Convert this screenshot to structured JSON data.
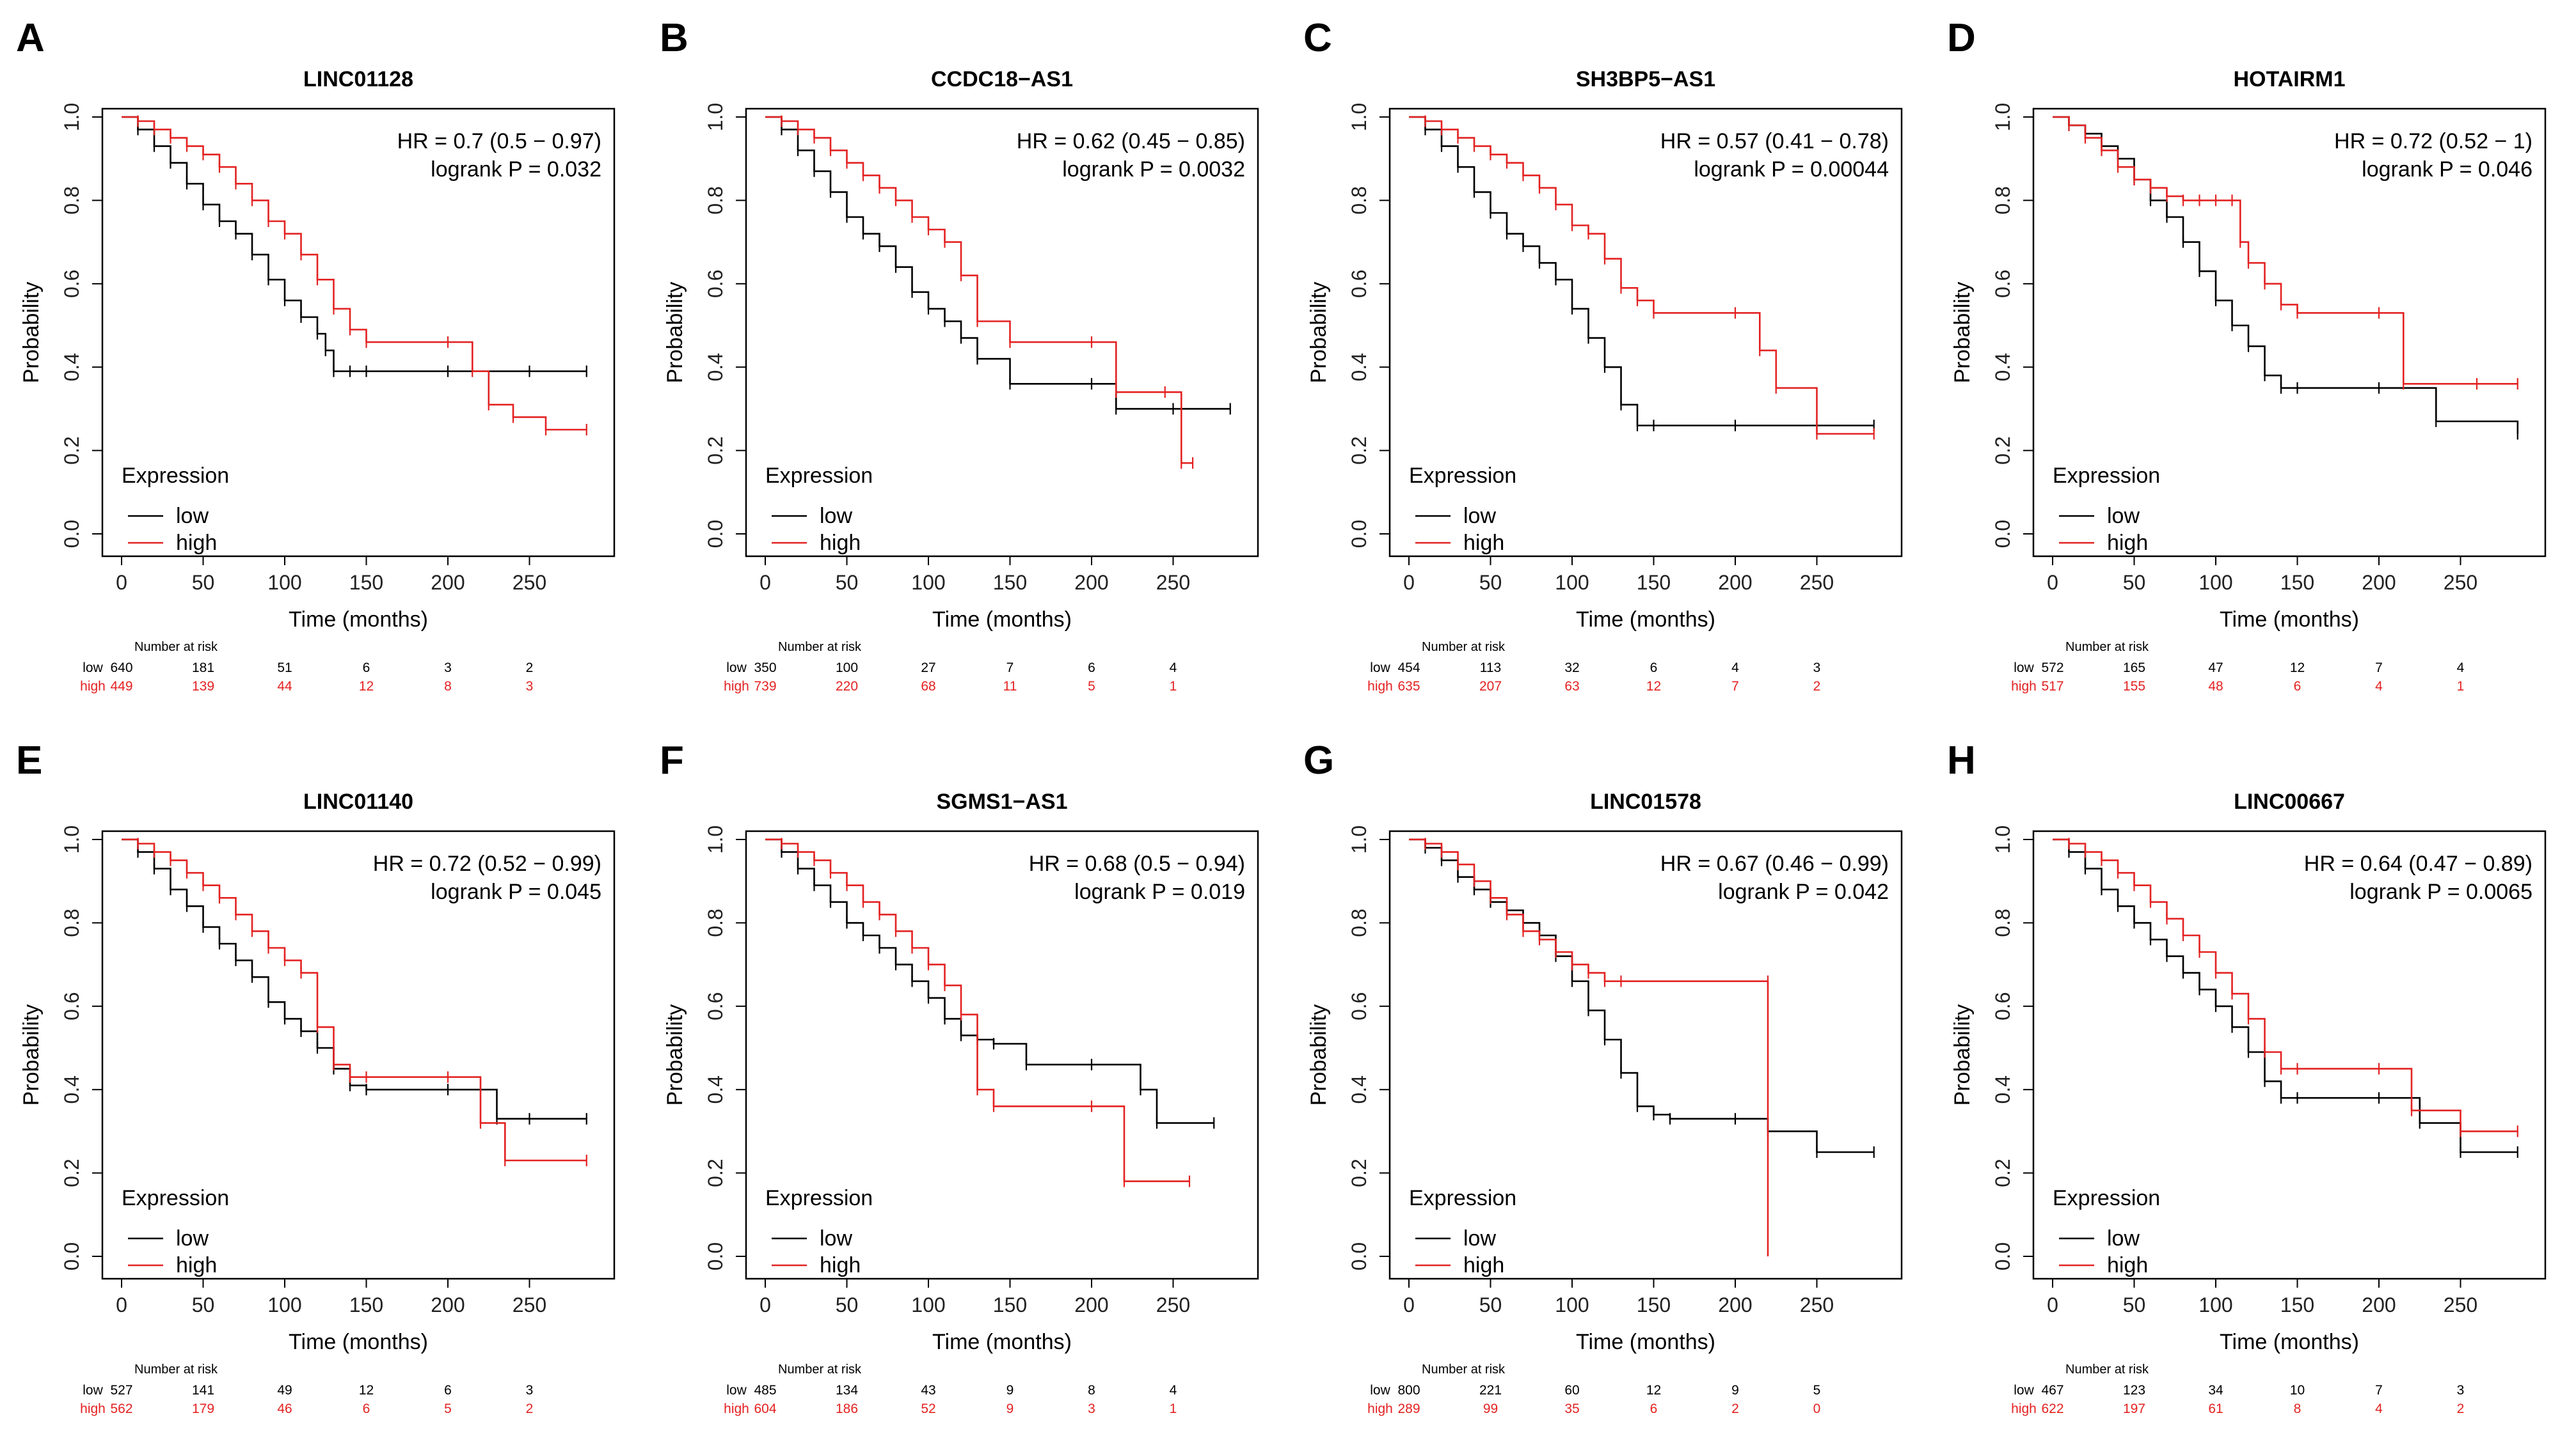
{
  "figure": {
    "colors": {
      "low": "#000000",
      "high": "#e32222",
      "axis": "#000000",
      "tick": "#222222"
    },
    "legend_title": "Expression",
    "legend_low": "low",
    "legend_high": "high",
    "ylabel": "Probability",
    "xlabel": "Time (months)",
    "risk_heading": "Number at risk",
    "x_ticks": [
      0,
      50,
      100,
      150,
      200,
      250
    ],
    "y_ticks": [
      "0.0",
      "0.2",
      "0.4",
      "0.6",
      "0.8",
      "1.0"
    ]
  },
  "chart_data": [
    {
      "panel": "A",
      "type": "line",
      "title": "LINC01128",
      "hr_text": "HR = 0.7 (0.5 − 0.97)",
      "p_text": "logrank P = 0.032",
      "xlabel": "Time (months)",
      "ylabel": "Probability",
      "xlim": [
        0,
        290
      ],
      "ylim": [
        0,
        1
      ],
      "series": [
        {
          "name": "low",
          "x": [
            0,
            10,
            20,
            30,
            40,
            50,
            60,
            70,
            80,
            90,
            100,
            110,
            120,
            125,
            130,
            140,
            150,
            200,
            250,
            285
          ],
          "y": [
            1.0,
            0.97,
            0.93,
            0.89,
            0.84,
            0.79,
            0.75,
            0.72,
            0.67,
            0.61,
            0.56,
            0.52,
            0.48,
            0.44,
            0.39,
            0.39,
            0.39,
            0.39,
            0.39,
            0.39
          ]
        },
        {
          "name": "high",
          "x": [
            0,
            10,
            20,
            30,
            40,
            50,
            60,
            70,
            80,
            90,
            100,
            110,
            120,
            130,
            140,
            150,
            200,
            215,
            225,
            240,
            260,
            285
          ],
          "y": [
            1.0,
            0.99,
            0.97,
            0.95,
            0.93,
            0.91,
            0.88,
            0.84,
            0.8,
            0.75,
            0.72,
            0.67,
            0.61,
            0.54,
            0.49,
            0.46,
            0.46,
            0.39,
            0.31,
            0.28,
            0.25,
            0.25
          ]
        }
      ],
      "at_risk": {
        "low": [
          "640",
          "181",
          "51",
          "6",
          "3",
          "2"
        ],
        "high": [
          "449",
          "139",
          "44",
          "12",
          "8",
          "3"
        ]
      }
    },
    {
      "panel": "B",
      "type": "line",
      "title": "CCDC18−AS1",
      "hr_text": "HR = 0.62 (0.45 − 0.85)",
      "p_text": "logrank P = 0.0032",
      "xlabel": "Time (months)",
      "ylabel": "Probability",
      "xlim": [
        0,
        290
      ],
      "ylim": [
        0,
        1
      ],
      "series": [
        {
          "name": "low",
          "x": [
            0,
            10,
            20,
            30,
            40,
            50,
            60,
            70,
            80,
            90,
            100,
            110,
            120,
            130,
            150,
            200,
            215,
            250,
            285
          ],
          "y": [
            1.0,
            0.97,
            0.92,
            0.87,
            0.82,
            0.76,
            0.72,
            0.69,
            0.64,
            0.58,
            0.54,
            0.51,
            0.47,
            0.42,
            0.36,
            0.36,
            0.3,
            0.3,
            0.3
          ]
        },
        {
          "name": "high",
          "x": [
            0,
            10,
            20,
            30,
            40,
            50,
            60,
            70,
            80,
            90,
            100,
            110,
            120,
            130,
            150,
            200,
            215,
            245,
            255,
            262
          ],
          "y": [
            1.0,
            0.99,
            0.97,
            0.95,
            0.92,
            0.89,
            0.86,
            0.83,
            0.8,
            0.76,
            0.73,
            0.7,
            0.62,
            0.51,
            0.46,
            0.46,
            0.34,
            0.34,
            0.17,
            0.17
          ]
        }
      ],
      "at_risk": {
        "low": [
          "350",
          "100",
          "27",
          "7",
          "6",
          "4"
        ],
        "high": [
          "739",
          "220",
          "68",
          "11",
          "5",
          "1"
        ]
      }
    },
    {
      "panel": "C",
      "type": "line",
      "title": "SH3BP5−AS1",
      "hr_text": "HR = 0.57 (0.41 − 0.78)",
      "p_text": "logrank P = 0.00044",
      "xlabel": "Time (months)",
      "ylabel": "Probability",
      "xlim": [
        0,
        290
      ],
      "ylim": [
        0,
        1
      ],
      "series": [
        {
          "name": "low",
          "x": [
            0,
            10,
            20,
            30,
            40,
            50,
            60,
            70,
            80,
            90,
            100,
            110,
            120,
            130,
            140,
            150,
            200,
            250,
            285
          ],
          "y": [
            1.0,
            0.97,
            0.93,
            0.88,
            0.82,
            0.77,
            0.72,
            0.69,
            0.65,
            0.61,
            0.54,
            0.47,
            0.4,
            0.31,
            0.26,
            0.26,
            0.26,
            0.26,
            0.26
          ]
        },
        {
          "name": "high",
          "x": [
            0,
            10,
            20,
            30,
            40,
            50,
            60,
            70,
            80,
            90,
            100,
            110,
            120,
            130,
            140,
            150,
            200,
            215,
            225,
            250,
            285
          ],
          "y": [
            1.0,
            0.99,
            0.97,
            0.95,
            0.93,
            0.91,
            0.89,
            0.86,
            0.83,
            0.79,
            0.74,
            0.72,
            0.66,
            0.59,
            0.56,
            0.53,
            0.53,
            0.44,
            0.35,
            0.24,
            0.24
          ]
        }
      ],
      "at_risk": {
        "low": [
          "454",
          "113",
          "32",
          "6",
          "4",
          "3"
        ],
        "high": [
          "635",
          "207",
          "63",
          "12",
          "7",
          "2"
        ]
      }
    },
    {
      "panel": "D",
      "type": "line",
      "title": "HOTAIRM1",
      "hr_text": "HR = 0.72 (0.52 − 1)",
      "p_text": "logrank P = 0.046",
      "xlabel": "Time (months)",
      "ylabel": "Probability",
      "xlim": [
        0,
        290
      ],
      "ylim": [
        0,
        1
      ],
      "series": [
        {
          "name": "low",
          "x": [
            0,
            10,
            20,
            30,
            40,
            50,
            60,
            70,
            80,
            90,
            100,
            110,
            120,
            130,
            140,
            150,
            200,
            235,
            285
          ],
          "y": [
            1.0,
            0.98,
            0.96,
            0.93,
            0.9,
            0.85,
            0.8,
            0.76,
            0.7,
            0.63,
            0.56,
            0.5,
            0.45,
            0.38,
            0.35,
            0.35,
            0.35,
            0.27,
            0.24
          ]
        },
        {
          "name": "high",
          "x": [
            0,
            10,
            20,
            30,
            40,
            50,
            60,
            70,
            80,
            90,
            100,
            110,
            115,
            120,
            130,
            140,
            150,
            200,
            215,
            260,
            285
          ],
          "y": [
            1.0,
            0.98,
            0.95,
            0.92,
            0.88,
            0.85,
            0.83,
            0.81,
            0.8,
            0.8,
            0.8,
            0.8,
            0.7,
            0.65,
            0.6,
            0.55,
            0.53,
            0.53,
            0.36,
            0.36,
            0.36
          ]
        }
      ],
      "at_risk": {
        "low": [
          "572",
          "165",
          "47",
          "12",
          "7",
          "4"
        ],
        "high": [
          "517",
          "155",
          "48",
          "6",
          "4",
          "1"
        ]
      }
    },
    {
      "panel": "E",
      "type": "line",
      "title": "LINC01140",
      "hr_text": "HR = 0.72 (0.52 − 0.99)",
      "p_text": "logrank P = 0.045",
      "xlabel": "Time (months)",
      "ylabel": "Probability",
      "xlim": [
        0,
        290
      ],
      "ylim": [
        0,
        1
      ],
      "series": [
        {
          "name": "low",
          "x": [
            0,
            10,
            20,
            30,
            40,
            50,
            60,
            70,
            80,
            90,
            100,
            110,
            120,
            130,
            140,
            150,
            200,
            230,
            250,
            285
          ],
          "y": [
            1.0,
            0.97,
            0.93,
            0.88,
            0.84,
            0.79,
            0.75,
            0.71,
            0.67,
            0.61,
            0.57,
            0.54,
            0.5,
            0.45,
            0.41,
            0.4,
            0.4,
            0.33,
            0.33,
            0.33
          ]
        },
        {
          "name": "high",
          "x": [
            0,
            10,
            20,
            30,
            40,
            50,
            60,
            70,
            80,
            90,
            100,
            110,
            120,
            130,
            140,
            150,
            200,
            220,
            235,
            285
          ],
          "y": [
            1.0,
            0.99,
            0.97,
            0.95,
            0.92,
            0.89,
            0.86,
            0.82,
            0.78,
            0.74,
            0.71,
            0.68,
            0.55,
            0.46,
            0.43,
            0.43,
            0.43,
            0.32,
            0.23,
            0.23
          ]
        }
      ],
      "at_risk": {
        "low": [
          "527",
          "141",
          "49",
          "12",
          "6",
          "3"
        ],
        "high": [
          "562",
          "179",
          "46",
          "6",
          "5",
          "2"
        ]
      }
    },
    {
      "panel": "F",
      "type": "line",
      "title": "SGMS1−AS1",
      "hr_text": "HR = 0.68 (0.5 − 0.94)",
      "p_text": "logrank P = 0.019",
      "xlabel": "Time (months)",
      "ylabel": "Probability",
      "xlim": [
        0,
        290
      ],
      "ylim": [
        0,
        1
      ],
      "series": [
        {
          "name": "low",
          "x": [
            0,
            10,
            20,
            30,
            40,
            50,
            60,
            70,
            80,
            90,
            100,
            110,
            120,
            130,
            140,
            160,
            200,
            230,
            240,
            275
          ],
          "y": [
            1.0,
            0.97,
            0.93,
            0.89,
            0.85,
            0.8,
            0.77,
            0.74,
            0.7,
            0.66,
            0.62,
            0.57,
            0.53,
            0.52,
            0.51,
            0.46,
            0.46,
            0.4,
            0.32,
            0.32
          ]
        },
        {
          "name": "high",
          "x": [
            0,
            10,
            20,
            30,
            40,
            50,
            60,
            70,
            80,
            90,
            100,
            110,
            120,
            130,
            140,
            200,
            220,
            260
          ],
          "y": [
            1.0,
            0.99,
            0.97,
            0.95,
            0.92,
            0.89,
            0.85,
            0.82,
            0.78,
            0.74,
            0.7,
            0.65,
            0.58,
            0.4,
            0.36,
            0.36,
            0.18,
            0.18
          ]
        }
      ],
      "at_risk": {
        "low": [
          "485",
          "134",
          "43",
          "9",
          "8",
          "4"
        ],
        "high": [
          "604",
          "186",
          "52",
          "9",
          "3",
          "1"
        ]
      }
    },
    {
      "panel": "G",
      "type": "line",
      "title": "LINC01578",
      "hr_text": "HR = 0.67 (0.46 − 0.99)",
      "p_text": "logrank P = 0.042",
      "xlabel": "Time (months)",
      "ylabel": "Probability",
      "xlim": [
        0,
        290
      ],
      "ylim": [
        0,
        1
      ],
      "series": [
        {
          "name": "low",
          "x": [
            0,
            10,
            20,
            30,
            40,
            50,
            60,
            70,
            80,
            90,
            100,
            110,
            120,
            130,
            140,
            150,
            160,
            200,
            220,
            250,
            285
          ],
          "y": [
            1.0,
            0.98,
            0.95,
            0.91,
            0.88,
            0.85,
            0.83,
            0.8,
            0.77,
            0.72,
            0.66,
            0.59,
            0.52,
            0.44,
            0.36,
            0.34,
            0.33,
            0.33,
            0.3,
            0.25,
            0.25
          ]
        },
        {
          "name": "high",
          "x": [
            0,
            10,
            20,
            30,
            40,
            50,
            60,
            70,
            80,
            90,
            100,
            110,
            120,
            130,
            220,
            220
          ],
          "y": [
            1.0,
            0.99,
            0.97,
            0.94,
            0.9,
            0.86,
            0.82,
            0.78,
            0.76,
            0.73,
            0.7,
            0.68,
            0.66,
            0.66,
            0.66,
            0.0
          ]
        }
      ],
      "at_risk": {
        "low": [
          "800",
          "221",
          "60",
          "12",
          "9",
          "5"
        ],
        "high": [
          "289",
          "99",
          "35",
          "6",
          "2",
          "0"
        ]
      }
    },
    {
      "panel": "H",
      "type": "line",
      "title": "LINC00667",
      "hr_text": "HR = 0.64 (0.47 − 0.89)",
      "p_text": "logrank P = 0.0065",
      "xlabel": "Time (months)",
      "ylabel": "Probability",
      "xlim": [
        0,
        290
      ],
      "ylim": [
        0,
        1
      ],
      "series": [
        {
          "name": "low",
          "x": [
            0,
            10,
            20,
            30,
            40,
            50,
            60,
            70,
            80,
            90,
            100,
            110,
            120,
            130,
            140,
            150,
            200,
            225,
            250,
            285
          ],
          "y": [
            1.0,
            0.97,
            0.93,
            0.88,
            0.84,
            0.8,
            0.76,
            0.72,
            0.68,
            0.64,
            0.6,
            0.55,
            0.49,
            0.42,
            0.38,
            0.38,
            0.38,
            0.32,
            0.25,
            0.25
          ]
        },
        {
          "name": "high",
          "x": [
            0,
            10,
            20,
            30,
            40,
            50,
            60,
            70,
            80,
            90,
            100,
            110,
            120,
            130,
            140,
            150,
            200,
            220,
            250,
            285
          ],
          "y": [
            1.0,
            0.99,
            0.97,
            0.95,
            0.92,
            0.89,
            0.85,
            0.81,
            0.77,
            0.73,
            0.68,
            0.63,
            0.57,
            0.49,
            0.45,
            0.45,
            0.45,
            0.35,
            0.3,
            0.3
          ]
        }
      ],
      "at_risk": {
        "low": [
          "467",
          "123",
          "34",
          "10",
          "7",
          "3"
        ],
        "high": [
          "622",
          "197",
          "61",
          "8",
          "4",
          "2"
        ]
      }
    }
  ]
}
